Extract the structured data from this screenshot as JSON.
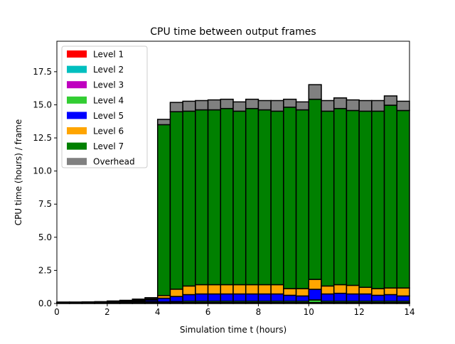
{
  "chart_data": {
    "type": "bar",
    "stacked": true,
    "title": "CPU time between output frames",
    "xlabel": "Simulation time t (hours)",
    "ylabel": "CPU time (hours) / frame",
    "xlim": [
      0,
      14
    ],
    "ylim": [
      0,
      19.8
    ],
    "xticks": [
      0,
      2,
      4,
      6,
      8,
      10,
      12,
      14
    ],
    "xtick_labels": [
      "0",
      "2",
      "4",
      "6",
      "8",
      "10",
      "12",
      "14"
    ],
    "yticks": [
      0,
      2.5,
      5,
      7.5,
      10,
      12.5,
      15,
      17.5
    ],
    "ytick_labels": [
      "0.0",
      "2.5",
      "5.0",
      "7.5",
      "10.0",
      "12.5",
      "15.0",
      "17.5"
    ],
    "grid": false,
    "legend_position": "top-left",
    "bar_width": 0.5,
    "x": [
      0,
      0.5,
      1,
      1.5,
      2,
      2.5,
      3,
      3.5,
      4,
      4.5,
      5,
      5.5,
      6,
      6.5,
      7,
      7.5,
      8,
      8.5,
      9,
      9.5,
      10,
      10.5,
      11,
      11.5,
      12,
      12.5,
      13,
      13.5
    ],
    "series": [
      {
        "name": "Level 1",
        "color": "#ff0000",
        "values": [
          0.02,
          0.02,
          0.02,
          0.02,
          0.02,
          0.02,
          0.02,
          0.02,
          0.02,
          0.02,
          0.02,
          0.02,
          0.02,
          0.02,
          0.02,
          0.02,
          0.02,
          0.02,
          0.02,
          0.02,
          0.02,
          0.02,
          0.02,
          0.02,
          0.02,
          0.02,
          0.02,
          0.02
        ]
      },
      {
        "name": "Level 2",
        "color": "#00bfbf",
        "values": [
          0.02,
          0.02,
          0.02,
          0.02,
          0.02,
          0.02,
          0.02,
          0.02,
          0.02,
          0.02,
          0.02,
          0.02,
          0.02,
          0.02,
          0.02,
          0.02,
          0.02,
          0.02,
          0.02,
          0.02,
          0.02,
          0.02,
          0.02,
          0.02,
          0.02,
          0.02,
          0.02,
          0.02
        ]
      },
      {
        "name": "Level 3",
        "color": "#bf00bf",
        "values": [
          0.01,
          0.01,
          0.01,
          0.01,
          0.02,
          0.02,
          0.03,
          0.04,
          0.03,
          0.03,
          0.03,
          0.03,
          0.03,
          0.03,
          0.03,
          0.03,
          0.03,
          0.03,
          0.03,
          0.03,
          0.03,
          0.03,
          0.03,
          0.03,
          0.03,
          0.03,
          0.03,
          0.03
        ]
      },
      {
        "name": "Level 4",
        "color": "#32cd32",
        "values": [
          0.01,
          0.01,
          0.01,
          0.01,
          0.02,
          0.03,
          0.05,
          0.07,
          0.05,
          0.08,
          0.1,
          0.1,
          0.1,
          0.1,
          0.1,
          0.1,
          0.1,
          0.1,
          0.1,
          0.1,
          0.2,
          0.1,
          0.1,
          0.1,
          0.1,
          0.1,
          0.1,
          0.1
        ]
      },
      {
        "name": "Level 5",
        "color": "#0000ff",
        "values": [
          0.01,
          0.01,
          0.01,
          0.02,
          0.03,
          0.05,
          0.08,
          0.12,
          0.28,
          0.38,
          0.5,
          0.55,
          0.55,
          0.55,
          0.55,
          0.55,
          0.55,
          0.55,
          0.45,
          0.4,
          0.8,
          0.55,
          0.6,
          0.55,
          0.55,
          0.45,
          0.5,
          0.4
        ]
      },
      {
        "name": "Level 6",
        "color": "#ffa500",
        "values": [
          0,
          0,
          0,
          0.01,
          0.02,
          0.03,
          0.05,
          0.08,
          0.2,
          0.55,
          0.65,
          0.7,
          0.7,
          0.7,
          0.7,
          0.7,
          0.7,
          0.7,
          0.5,
          0.55,
          0.75,
          0.6,
          0.65,
          0.65,
          0.5,
          0.5,
          0.5,
          0.6
        ]
      },
      {
        "name": "Level 7",
        "color": "#008000",
        "values": [
          0,
          0,
          0,
          0,
          0,
          0,
          0,
          0,
          12.9,
          13.4,
          13.2,
          13.2,
          13.2,
          13.3,
          13.1,
          13.3,
          13.2,
          13.1,
          13.7,
          13.5,
          13.6,
          13.2,
          13.3,
          13.2,
          13.3,
          13.4,
          13.8,
          13.4
        ]
      },
      {
        "name": "Overhead",
        "color": "#808080",
        "values": [
          0.04,
          0.04,
          0.05,
          0.05,
          0.06,
          0.07,
          0.08,
          0.09,
          0.4,
          0.7,
          0.75,
          0.7,
          0.75,
          0.7,
          0.7,
          0.7,
          0.7,
          0.8,
          0.6,
          0.6,
          1.1,
          0.8,
          0.8,
          0.8,
          0.8,
          0.8,
          0.7,
          0.7
        ]
      }
    ]
  }
}
